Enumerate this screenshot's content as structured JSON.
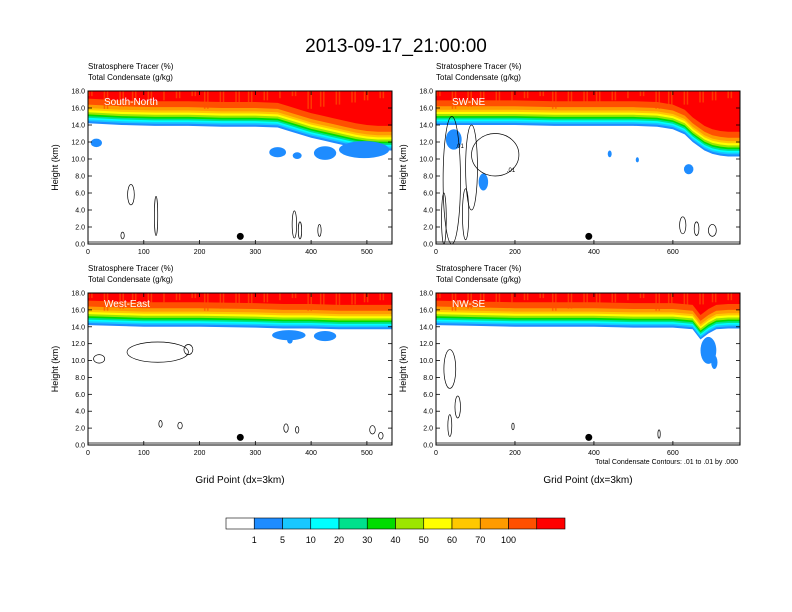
{
  "chart_data": {
    "type": "heatmap",
    "title": "2013-09-17_21:00:00",
    "contour_note": "Total Condensate Contours: .01 to .01 by .000",
    "colorbar": {
      "levels": [
        "1",
        "5",
        "10",
        "20",
        "30",
        "40",
        "50",
        "60",
        "70",
        "100"
      ],
      "colors": [
        "#ffffff",
        "#1e8cff",
        "#18c8ff",
        "#00ffff",
        "#00e18c",
        "#00dc00",
        "#9ce600",
        "#ffff00",
        "#ffc800",
        "#ff9b00",
        "#ff5000",
        "#ff0000"
      ]
    },
    "panels": [
      {
        "id": "south-north",
        "label": "South-North",
        "subtitle1": "Stratosphere Tracer   (%)",
        "subtitle2": "Total Condensate   (g/kg)",
        "ylabel": "Height (km)",
        "xlabel": "",
        "x_ticks": [
          "0",
          "100",
          "200",
          "300",
          "400",
          "500"
        ],
        "x_tick_values": [
          0,
          100,
          200,
          300,
          400,
          500
        ],
        "xlim": [
          0,
          545
        ],
        "ylim": [
          0,
          18
        ],
        "y_ticks": [
          "0.0",
          "2.0",
          "4.0",
          "6.0",
          "8.0",
          "10.0",
          "12.0",
          "14.0",
          "16.0",
          "18.0"
        ],
        "y_tick_values": [
          0,
          2,
          4,
          6,
          8,
          10,
          12,
          14,
          16,
          18
        ],
        "marker_x": 273,
        "tropopause_x": [
          0,
          60,
          120,
          180,
          240,
          300,
          340,
          360,
          380,
          400,
          420,
          440,
          460,
          480,
          500,
          520,
          545
        ],
        "tropopause_y": [
          14.2,
          14.0,
          13.9,
          13.9,
          13.8,
          13.8,
          13.7,
          13.3,
          12.9,
          12.5,
          12.2,
          11.9,
          11.6,
          11.3,
          11.1,
          11.0,
          11.0
        ],
        "cloud_blobs": [
          {
            "x": 15,
            "y": 11.9,
            "rx": 10,
            "ry": 0.5
          },
          {
            "x": 340,
            "y": 10.8,
            "rx": 15,
            "ry": 0.6
          },
          {
            "x": 425,
            "y": 10.7,
            "rx": 20,
            "ry": 0.8
          },
          {
            "x": 495,
            "y": 11.1,
            "rx": 45,
            "ry": 1.0
          },
          {
            "x": 375,
            "y": 10.4,
            "rx": 8,
            "ry": 0.4
          }
        ],
        "contours": [
          {
            "x": 77,
            "y": 5.8,
            "rx": 6,
            "ry": 1.2
          },
          {
            "x": 122,
            "y": 3.3,
            "rx": 3,
            "ry": 2.3
          },
          {
            "x": 370,
            "y": 2.3,
            "rx": 4,
            "ry": 1.6
          },
          {
            "x": 380,
            "y": 1.6,
            "rx": 3,
            "ry": 1.0
          },
          {
            "x": 415,
            "y": 1.6,
            "rx": 3,
            "ry": 0.7
          },
          {
            "x": 62,
            "y": 1.0,
            "rx": 3,
            "ry": 0.4
          }
        ]
      },
      {
        "id": "sw-ne",
        "label": "SW-NE",
        "subtitle1": "Stratosphere Tracer   (%)",
        "subtitle2": "Total Condensate   (g/kg)",
        "ylabel": "Height (km)",
        "xlabel": "",
        "x_ticks": [
          "0",
          "200",
          "400",
          "600"
        ],
        "x_tick_values": [
          0,
          200,
          400,
          600
        ],
        "xlim": [
          0,
          770
        ],
        "ylim": [
          0,
          18
        ],
        "y_ticks": [
          "0.0",
          "2.0",
          "4.0",
          "6.0",
          "8.0",
          "10.0",
          "12.0",
          "14.0",
          "16.0",
          "18.0"
        ],
        "y_tick_values": [
          0,
          2,
          4,
          6,
          8,
          10,
          12,
          14,
          16,
          18
        ],
        "marker_x": 387,
        "tropopause_x": [
          0,
          100,
          200,
          300,
          400,
          500,
          560,
          600,
          630,
          650,
          680,
          700,
          720,
          740,
          770
        ],
        "tropopause_y": [
          14.0,
          14.0,
          14.0,
          13.9,
          13.9,
          13.9,
          13.8,
          13.5,
          12.9,
          12.0,
          11.0,
          10.6,
          10.4,
          10.3,
          10.3
        ],
        "cloud_blobs": [
          {
            "x": 45,
            "y": 12.3,
            "rx": 20,
            "ry": 1.2
          },
          {
            "x": 120,
            "y": 7.3,
            "rx": 12,
            "ry": 1.0
          },
          {
            "x": 440,
            "y": 10.6,
            "rx": 5,
            "ry": 0.4
          },
          {
            "x": 640,
            "y": 8.8,
            "rx": 12,
            "ry": 0.6
          },
          {
            "x": 510,
            "y": 9.9,
            "rx": 4,
            "ry": 0.3
          }
        ],
        "contours": [
          {
            "x": 40,
            "y": 7.5,
            "rx": 22,
            "ry": 7.5
          },
          {
            "x": 90,
            "y": 9.0,
            "rx": 15,
            "ry": 5.0
          },
          {
            "x": 150,
            "y": 10.5,
            "rx": 60,
            "ry": 2.5
          },
          {
            "x": 20,
            "y": 3.0,
            "rx": 6,
            "ry": 3.0
          },
          {
            "x": 75,
            "y": 3.5,
            "rx": 8,
            "ry": 3.0
          },
          {
            "x": 625,
            "y": 2.2,
            "rx": 8,
            "ry": 1.0
          },
          {
            "x": 660,
            "y": 1.8,
            "rx": 6,
            "ry": 0.8
          },
          {
            "x": 700,
            "y": 1.6,
            "rx": 10,
            "ry": 0.7
          }
        ],
        "contour_labels": [
          {
            "text": ".01",
            "x": 60,
            "y": 11.3
          },
          {
            "text": ".01",
            "x": 190,
            "y": 8.5
          }
        ]
      },
      {
        "id": "west-east",
        "label": "West-East",
        "subtitle1": "Stratosphere Tracer   (%)",
        "subtitle2": "Total Condensate   (g/kg)",
        "ylabel": "Height (km)",
        "xlabel": "Grid Point (dx=3km)",
        "x_ticks": [
          "0",
          "100",
          "200",
          "300",
          "400",
          "500"
        ],
        "x_tick_values": [
          0,
          100,
          200,
          300,
          400,
          500
        ],
        "xlim": [
          0,
          545
        ],
        "ylim": [
          0,
          18
        ],
        "y_ticks": [
          "0.0",
          "2.0",
          "4.0",
          "6.0",
          "8.0",
          "10.0",
          "12.0",
          "14.0",
          "16.0",
          "18.0"
        ],
        "y_tick_values": [
          0,
          2,
          4,
          6,
          8,
          10,
          12,
          14,
          16,
          18
        ],
        "marker_x": 273,
        "tropopause_x": [
          0,
          100,
          200,
          300,
          350,
          400,
          450,
          500,
          545
        ],
        "tropopause_y": [
          14.2,
          14.0,
          14.0,
          13.9,
          13.8,
          13.8,
          13.7,
          13.7,
          13.7
        ],
        "cloud_blobs": [
          {
            "x": 360,
            "y": 13.0,
            "rx": 30,
            "ry": 0.6
          },
          {
            "x": 425,
            "y": 12.9,
            "rx": 20,
            "ry": 0.6
          },
          {
            "x": 362,
            "y": 12.4,
            "rx": 5,
            "ry": 0.4
          },
          {
            "x": 358,
            "y": 13.1,
            "rx": 3,
            "ry": 0.3
          }
        ],
        "contours": [
          {
            "x": 125,
            "y": 11.0,
            "rx": 55,
            "ry": 1.2
          },
          {
            "x": 180,
            "y": 11.3,
            "rx": 8,
            "ry": 0.6
          },
          {
            "x": 20,
            "y": 10.2,
            "rx": 10,
            "ry": 0.5
          },
          {
            "x": 130,
            "y": 2.5,
            "rx": 3,
            "ry": 0.4
          },
          {
            "x": 165,
            "y": 2.3,
            "rx": 4,
            "ry": 0.4
          },
          {
            "x": 355,
            "y": 2.0,
            "rx": 4,
            "ry": 0.5
          },
          {
            "x": 375,
            "y": 1.8,
            "rx": 3,
            "ry": 0.4
          },
          {
            "x": 510,
            "y": 1.8,
            "rx": 5,
            "ry": 0.5
          },
          {
            "x": 525,
            "y": 1.1,
            "rx": 4,
            "ry": 0.4
          }
        ]
      },
      {
        "id": "nw-se",
        "label": "NW-SE",
        "subtitle1": "Stratosphere Tracer   (%)",
        "subtitle2": "Total Condensate   (g/kg)",
        "ylabel": "Height (km)",
        "xlabel": "Grid Point (dx=3km)",
        "x_ticks": [
          "0",
          "200",
          "400",
          "600"
        ],
        "x_tick_values": [
          0,
          200,
          400,
          600
        ],
        "xlim": [
          0,
          770
        ],
        "ylim": [
          0,
          18
        ],
        "y_ticks": [
          "0.0",
          "2.0",
          "4.0",
          "6.0",
          "8.0",
          "10.0",
          "12.0",
          "14.0",
          "16.0",
          "18.0"
        ],
        "y_tick_values": [
          0,
          2,
          4,
          6,
          8,
          10,
          12,
          14,
          16,
          18
        ],
        "marker_x": 387,
        "tropopause_x": [
          0,
          100,
          200,
          300,
          400,
          500,
          600,
          650,
          670,
          690,
          710,
          740,
          770
        ],
        "tropopause_y": [
          14.2,
          14.1,
          14.0,
          14.0,
          14.0,
          13.9,
          13.9,
          13.7,
          12.5,
          13.2,
          13.7,
          13.8,
          13.8
        ],
        "cloud_blobs": [
          {
            "x": 690,
            "y": 11.2,
            "rx": 20,
            "ry": 1.6
          },
          {
            "x": 705,
            "y": 9.8,
            "rx": 8,
            "ry": 0.8
          }
        ],
        "contours": [
          {
            "x": 35,
            "y": 9.0,
            "rx": 15,
            "ry": 2.3
          },
          {
            "x": 55,
            "y": 4.5,
            "rx": 7,
            "ry": 1.3
          },
          {
            "x": 35,
            "y": 2.3,
            "rx": 5,
            "ry": 1.3
          },
          {
            "x": 195,
            "y": 2.2,
            "rx": 3,
            "ry": 0.4
          },
          {
            "x": 565,
            "y": 1.3,
            "rx": 3,
            "ry": 0.5
          }
        ]
      }
    ]
  }
}
